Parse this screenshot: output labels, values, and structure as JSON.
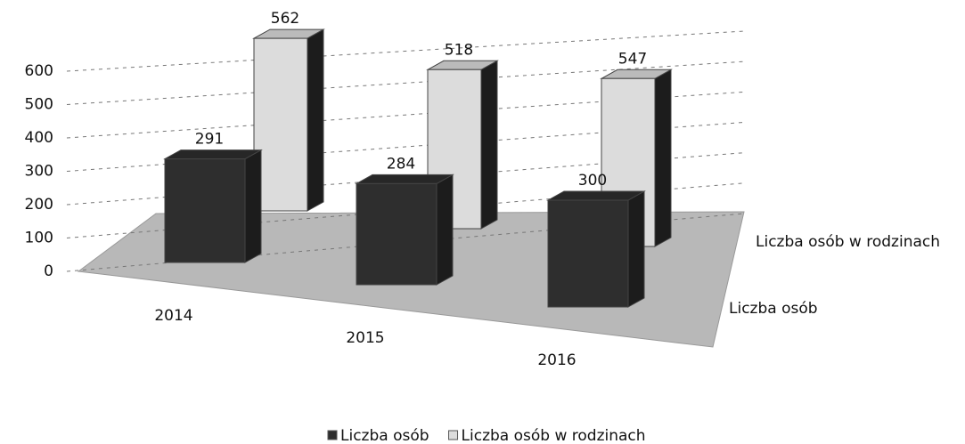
{
  "chart_data": {
    "type": "bar3d",
    "categories": [
      "2014",
      "2015",
      "2016"
    ],
    "series": [
      {
        "name": "Liczba osób",
        "color": "#2e2e2e",
        "values": [
          291,
          284,
          300
        ]
      },
      {
        "name": "Liczba osób w rodzinach",
        "color": "#dcdcdc",
        "values": [
          562,
          518,
          547
        ]
      }
    ],
    "ylim": [
      0,
      600
    ],
    "yticks": [
      0,
      100,
      200,
      300,
      400,
      500,
      600
    ],
    "grid": true,
    "legend": "bottom"
  }
}
